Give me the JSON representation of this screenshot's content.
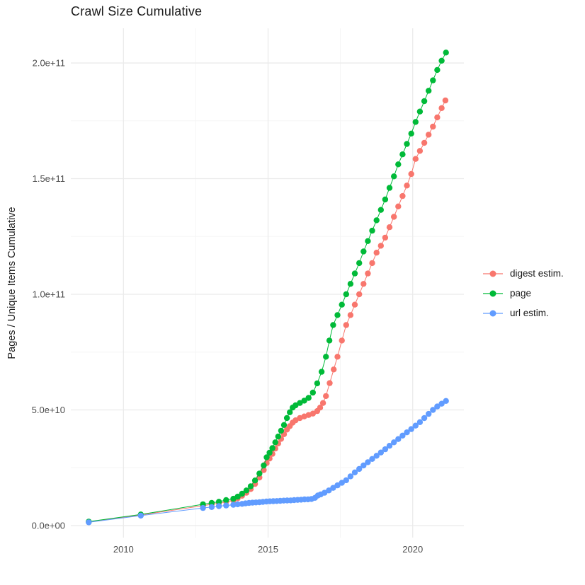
{
  "chart_data": {
    "type": "scatter",
    "title": "Crawl Size Cumulative",
    "xlabel": "",
    "ylabel": "Pages / Unique Items Cumulative",
    "grid": {
      "background": "#ffffff",
      "major_color": "#ebebeb",
      "minor_color": "#f5f5f5",
      "grid_on": true
    },
    "legend_position": "right",
    "x_axis": {
      "lim": [
        2008.18,
        2021.77
      ],
      "major_ticks": [
        {
          "value": 2010,
          "label": "2010"
        },
        {
          "value": 2015,
          "label": "2015"
        },
        {
          "value": 2020,
          "label": "2020"
        }
      ],
      "minor_ticks": [
        2012.5,
        2017.5
      ]
    },
    "y_axis": {
      "lim": [
        -5200000000.0,
        215000000000.0
      ],
      "major_ticks": [
        {
          "value": 0,
          "label": "0.0e+00"
        },
        {
          "value": 50000000000.0,
          "label": "5.0e+10"
        },
        {
          "value": 100000000000.0,
          "label": "1.0e+11"
        },
        {
          "value": 150000000000.0,
          "label": "1.5e+11"
        },
        {
          "value": 200000000000.0,
          "label": "2.0e+11"
        }
      ],
      "minor_ticks": [
        25000000000.0,
        75000000000.0,
        125000000000.0,
        175000000000.0
      ]
    },
    "series": [
      {
        "name": "digest estim.",
        "color": "#F8766D",
        "points": [
          [
            2008.8,
            1600000000.0
          ],
          [
            2010.6,
            4600000000.0
          ],
          [
            2012.75,
            8600000000.0
          ],
          [
            2013.05,
            9200000000.0
          ],
          [
            2013.3,
            9700000000.0
          ],
          [
            2013.55,
            10300000000.0
          ],
          [
            2013.8,
            10900000000.0
          ],
          [
            2013.95,
            11800000000.0
          ],
          [
            2014.1,
            12900000000.0
          ],
          [
            2014.25,
            14200000000.0
          ],
          [
            2014.4,
            15800000000.0
          ],
          [
            2014.55,
            18000000000.0
          ],
          [
            2014.7,
            20800000000.0
          ],
          [
            2014.85,
            24000000000.0
          ],
          [
            2014.95,
            27000000000.0
          ],
          [
            2015.05,
            29000000000.0
          ],
          [
            2015.15,
            31000000000.0
          ],
          [
            2015.25,
            33300000000.0
          ],
          [
            2015.35,
            35500000000.0
          ],
          [
            2015.45,
            37500000000.0
          ],
          [
            2015.55,
            39500000000.0
          ],
          [
            2015.65,
            41500000000.0
          ],
          [
            2015.75,
            43000000000.0
          ],
          [
            2015.85,
            44500000000.0
          ],
          [
            2015.95,
            45500000000.0
          ],
          [
            2016.1,
            46500000000.0
          ],
          [
            2016.25,
            47200000000.0
          ],
          [
            2016.4,
            47800000000.0
          ],
          [
            2016.55,
            48400000000.0
          ],
          [
            2016.7,
            49500000000.0
          ],
          [
            2016.8,
            51000000000.0
          ],
          [
            2016.9,
            53000000000.0
          ],
          [
            2017.0,
            56000000000.0
          ],
          [
            2017.13,
            61600000000.0
          ],
          [
            2017.27,
            67500000000.0
          ],
          [
            2017.4,
            73000000000.0
          ],
          [
            2017.55,
            80000000000.0
          ],
          [
            2017.7,
            86700000000.0
          ],
          [
            2017.85,
            91000000000.0
          ],
          [
            2018.0,
            95500000000.0
          ],
          [
            2018.15,
            100000000000.0
          ],
          [
            2018.3,
            104500000000.0
          ],
          [
            2018.45,
            109000000000.0
          ],
          [
            2018.6,
            113500000000.0
          ],
          [
            2018.75,
            118000000000.0
          ],
          [
            2018.9,
            121000000000.0
          ],
          [
            2019.05,
            124500000000.0
          ],
          [
            2019.2,
            129000000000.0
          ],
          [
            2019.35,
            133500000000.0
          ],
          [
            2019.5,
            138000000000.0
          ],
          [
            2019.65,
            142500000000.0
          ],
          [
            2019.8,
            147000000000.0
          ],
          [
            2019.95,
            152000000000.0
          ],
          [
            2020.1,
            158500000000.0
          ],
          [
            2020.25,
            162000000000.0
          ],
          [
            2020.4,
            165500000000.0
          ],
          [
            2020.55,
            169000000000.0
          ],
          [
            2020.7,
            172500000000.0
          ],
          [
            2020.85,
            176500000000.0
          ],
          [
            2021.0,
            180500000000.0
          ],
          [
            2021.13,
            183800000000.0
          ]
        ]
      },
      {
        "name": "page",
        "color": "#00BA38",
        "points": [
          [
            2008.8,
            1700000000.0
          ],
          [
            2010.6,
            4800000000.0
          ],
          [
            2012.75,
            9200000000.0
          ],
          [
            2013.05,
            9800000000.0
          ],
          [
            2013.3,
            10300000000.0
          ],
          [
            2013.55,
            11000000000.0
          ],
          [
            2013.8,
            11600000000.0
          ],
          [
            2013.95,
            12500000000.0
          ],
          [
            2014.1,
            13800000000.0
          ],
          [
            2014.25,
            15200000000.0
          ],
          [
            2014.4,
            17000000000.0
          ],
          [
            2014.55,
            19500000000.0
          ],
          [
            2014.7,
            22500000000.0
          ],
          [
            2014.85,
            26000000000.0
          ],
          [
            2014.95,
            29500000000.0
          ],
          [
            2015.05,
            31500000000.0
          ],
          [
            2015.15,
            33500000000.0
          ],
          [
            2015.25,
            36000000000.0
          ],
          [
            2015.35,
            38500000000.0
          ],
          [
            2015.45,
            41000000000.0
          ],
          [
            2015.55,
            43500000000.0
          ],
          [
            2015.65,
            46500000000.0
          ],
          [
            2015.75,
            49000000000.0
          ],
          [
            2015.85,
            51000000000.0
          ],
          [
            2015.95,
            52000000000.0
          ],
          [
            2016.1,
            53000000000.0
          ],
          [
            2016.25,
            54000000000.0
          ],
          [
            2016.4,
            55200000000.0
          ],
          [
            2016.55,
            57500000000.0
          ],
          [
            2016.7,
            61500000000.0
          ],
          [
            2016.85,
            66500000000.0
          ],
          [
            2017.0,
            73000000000.0
          ],
          [
            2017.12,
            80000000000.0
          ],
          [
            2017.25,
            86700000000.0
          ],
          [
            2017.4,
            91000000000.0
          ],
          [
            2017.55,
            95500000000.0
          ],
          [
            2017.7,
            100000000000.0
          ],
          [
            2017.85,
            104500000000.0
          ],
          [
            2018.0,
            109000000000.0
          ],
          [
            2018.15,
            113500000000.0
          ],
          [
            2018.3,
            118500000000.0
          ],
          [
            2018.45,
            123000000000.0
          ],
          [
            2018.6,
            127500000000.0
          ],
          [
            2018.75,
            132000000000.0
          ],
          [
            2018.9,
            136500000000.0
          ],
          [
            2019.05,
            141000000000.0
          ],
          [
            2019.2,
            146000000000.0
          ],
          [
            2019.35,
            151000000000.0
          ],
          [
            2019.5,
            156200000000.0
          ],
          [
            2019.65,
            160500000000.0
          ],
          [
            2019.8,
            165000000000.0
          ],
          [
            2019.95,
            169500000000.0
          ],
          [
            2020.1,
            174500000000.0
          ],
          [
            2020.25,
            179000000000.0
          ],
          [
            2020.4,
            183500000000.0
          ],
          [
            2020.55,
            188000000000.0
          ],
          [
            2020.7,
            192500000000.0
          ],
          [
            2020.85,
            197000000000.0
          ],
          [
            2021.0,
            201000000000.0
          ],
          [
            2021.15,
            204500000000.0
          ]
        ]
      },
      {
        "name": "url estim.",
        "color": "#619CFF",
        "points": [
          [
            2008.8,
            1400000000.0
          ],
          [
            2010.6,
            4300000000.0
          ],
          [
            2012.75,
            7600000000.0
          ],
          [
            2013.05,
            8000000000.0
          ],
          [
            2013.3,
            8400000000.0
          ],
          [
            2013.55,
            8700000000.0
          ],
          [
            2013.8,
            9000000000.0
          ],
          [
            2013.95,
            9200000000.0
          ],
          [
            2014.1,
            9400000000.0
          ],
          [
            2014.22,
            9600000000.0
          ],
          [
            2014.34,
            9800000000.0
          ],
          [
            2014.46,
            9900000000.0
          ],
          [
            2014.58,
            10000000000.0
          ],
          [
            2014.7,
            10100000000.0
          ],
          [
            2014.82,
            10250000000.0
          ],
          [
            2014.94,
            10400000000.0
          ],
          [
            2015.06,
            10500000000.0
          ],
          [
            2015.18,
            10550000000.0
          ],
          [
            2015.3,
            10600000000.0
          ],
          [
            2015.42,
            10700000000.0
          ],
          [
            2015.54,
            10800000000.0
          ],
          [
            2015.66,
            10850000000.0
          ],
          [
            2015.78,
            10900000000.0
          ],
          [
            2015.9,
            11000000000.0
          ],
          [
            2016.02,
            11100000000.0
          ],
          [
            2016.14,
            11200000000.0
          ],
          [
            2016.26,
            11300000000.0
          ],
          [
            2016.38,
            11350000000.0
          ],
          [
            2016.5,
            11500000000.0
          ],
          [
            2016.62,
            12000000000.0
          ],
          [
            2016.72,
            13000000000.0
          ],
          [
            2016.82,
            13500000000.0
          ],
          [
            2016.95,
            14200000000.0
          ],
          [
            2017.1,
            15200000000.0
          ],
          [
            2017.25,
            16300000000.0
          ],
          [
            2017.4,
            17400000000.0
          ],
          [
            2017.55,
            18500000000.0
          ],
          [
            2017.7,
            19600000000.0
          ],
          [
            2017.85,
            21300000000.0
          ],
          [
            2018.0,
            23000000000.0
          ],
          [
            2018.15,
            24500000000.0
          ],
          [
            2018.3,
            26000000000.0
          ],
          [
            2018.45,
            27400000000.0
          ],
          [
            2018.6,
            28800000000.0
          ],
          [
            2018.75,
            30200000000.0
          ],
          [
            2018.9,
            31600000000.0
          ],
          [
            2019.05,
            33000000000.0
          ],
          [
            2019.2,
            34500000000.0
          ],
          [
            2019.35,
            36000000000.0
          ],
          [
            2019.5,
            37400000000.0
          ],
          [
            2019.65,
            38900000000.0
          ],
          [
            2019.8,
            40300000000.0
          ],
          [
            2019.95,
            41700000000.0
          ],
          [
            2020.1,
            43200000000.0
          ],
          [
            2020.25,
            44700000000.0
          ],
          [
            2020.4,
            46500000000.0
          ],
          [
            2020.55,
            48300000000.0
          ],
          [
            2020.7,
            50000000000.0
          ],
          [
            2020.85,
            51500000000.0
          ],
          [
            2021.0,
            52700000000.0
          ],
          [
            2021.15,
            53900000000.0
          ]
        ]
      }
    ]
  }
}
